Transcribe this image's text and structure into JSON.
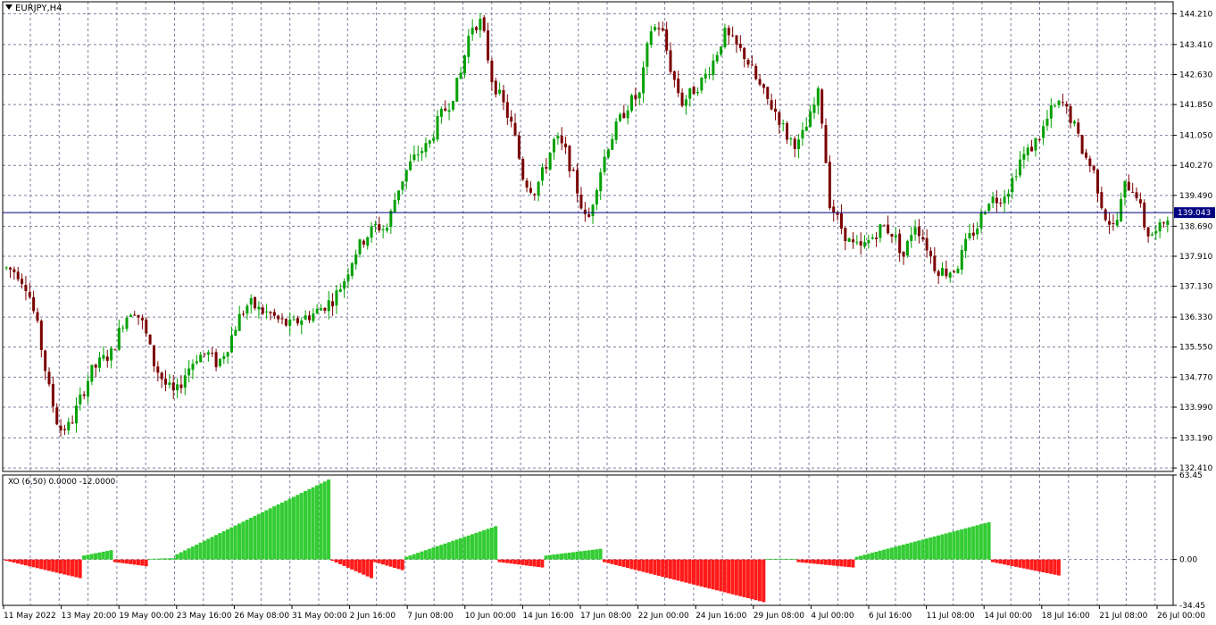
{
  "window": {
    "symbol_label": "EURJPY,H4",
    "indicator_label": "XO (6,50) 0.0000 -12.0000"
  },
  "colors": {
    "background": "#ffffff",
    "grid": "#7f7f9f",
    "bull_candle": "#00a000",
    "bear_candle": "#7a0000",
    "xo_up": "#33cc33",
    "xo_down": "#ff1a1a",
    "current_price_line": "#000080",
    "price_tag_bg": "#000080"
  },
  "chart_data": [
    {
      "type": "candlestick",
      "title": "EURJPY,H4",
      "y_ticks": [
        "144.210",
        "143.410",
        "142.630",
        "141.850",
        "141.050",
        "140.270",
        "139.490",
        "138.690",
        "137.910",
        "137.130",
        "136.330",
        "135.550",
        "134.770",
        "133.990",
        "133.190",
        "132.410"
      ],
      "ylim": [
        132.32,
        144.52
      ],
      "current_price": "139.043",
      "x_ticks": [
        "11 May 2022",
        "13 May 20:00",
        "19 May 00:00",
        "23 May 16:00",
        "26 May 08:00",
        "31 May 00:00",
        "2 Jun 16:00",
        "7 Jun 08:00",
        "10 Jun 00:00",
        "14 Jun 16:00",
        "17 Jun 08:00",
        "22 Jun 00:00",
        "24 Jun 16:00",
        "29 Jun 08:00",
        "4 Jul 00:00",
        "6 Jul 16:00",
        "11 Jul 08:00",
        "14 Jul 00:00",
        "18 Jul 16:00",
        "21 Jul 08:00",
        "26 Jul 00:00"
      ],
      "close_path": [
        137.6,
        137.5,
        137.1,
        136.0,
        134.5,
        133.4,
        133.5,
        134.2,
        134.9,
        135.2,
        135.4,
        136.2,
        136.6,
        136.1,
        135.1,
        134.6,
        134.3,
        134.9,
        135.3,
        135.4,
        135.1,
        135.6,
        136.3,
        136.7,
        136.5,
        136.4,
        136.2,
        136.1,
        136.3,
        136.4,
        136.6,
        136.8,
        137.3,
        138.0,
        138.4,
        138.7,
        138.6,
        139.6,
        140.2,
        140.6,
        140.8,
        141.5,
        141.9,
        142.6,
        143.9,
        144.0,
        142.5,
        141.9,
        141.2,
        139.9,
        139.6,
        140.2,
        141.0,
        140.6,
        139.7,
        138.7,
        139.9,
        140.8,
        141.4,
        141.9,
        142.1,
        143.8,
        143.9,
        142.7,
        141.9,
        142.2,
        142.5,
        143.0,
        143.7,
        143.4,
        143.1,
        142.5,
        142.0,
        141.6,
        141.0,
        140.8,
        141.4,
        142.2,
        139.3,
        138.7,
        138.2,
        138.1,
        138.4,
        138.7,
        138.5,
        137.9,
        138.8,
        138.3,
        137.6,
        137.5,
        137.6,
        138.3,
        138.7,
        139.4,
        139.4,
        139.7,
        140.4,
        140.7,
        141.1,
        141.7,
        141.9,
        141.4,
        140.6,
        140.1,
        139.0,
        138.6,
        139.8,
        139.6,
        138.5,
        138.5,
        139.0
      ]
    },
    {
      "type": "bar",
      "title": "XO (6,50) 0.0000 -12.0000",
      "y_ticks": [
        "63.45",
        "0.00",
        "-34.45"
      ],
      "ylim": [
        -34.45,
        63.45
      ],
      "segments": [
        {
          "bars": 20,
          "start": -1,
          "end": -14
        },
        {
          "bars": 8,
          "start": 3,
          "end": 7
        },
        {
          "bars": 9,
          "start": -2,
          "end": -5
        },
        {
          "bars": 7,
          "start": 0.5,
          "end": 1
        },
        {
          "bars": 40,
          "start": 4,
          "end": 60
        },
        {
          "bars": 11,
          "start": -1,
          "end": -14
        },
        {
          "bars": 8,
          "start": -2,
          "end": -8
        },
        {
          "bars": 24,
          "start": 2,
          "end": 25
        },
        {
          "bars": 12,
          "start": -2,
          "end": -6
        },
        {
          "bars": 15,
          "start": 3,
          "end": 8
        },
        {
          "bars": 42,
          "start": -2,
          "end": -32
        },
        {
          "bars": 8,
          "start": 0.5,
          "end": 0.5
        },
        {
          "bars": 15,
          "start": -2,
          "end": -6
        },
        {
          "bars": 35,
          "start": 2,
          "end": 28
        },
        {
          "bars": 18,
          "start": -2,
          "end": -12
        }
      ]
    }
  ]
}
